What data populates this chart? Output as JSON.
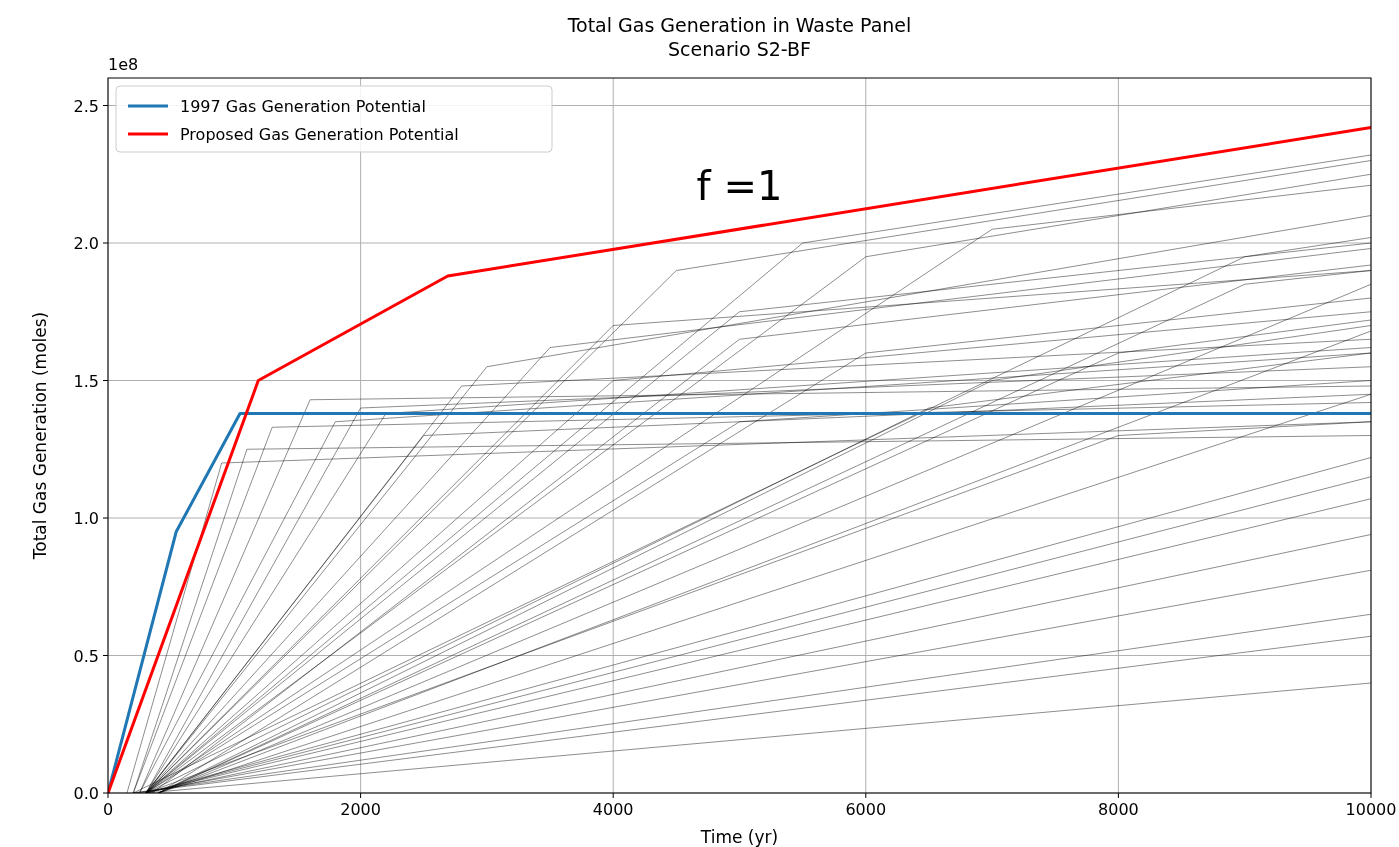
{
  "chart_data": {
    "type": "line",
    "title": "Total Gas Generation in Waste Panel",
    "subtitle": "Scenario S2-BF",
    "xlabel": "Time (yr)",
    "ylabel": "Total Gas Generation (moles)",
    "annotations": [
      "1e8",
      "f =1"
    ],
    "xlim": [
      0,
      10000
    ],
    "xticks": [
      0,
      2000,
      4000,
      6000,
      8000,
      10000
    ],
    "ylim": [
      0,
      2.6
    ],
    "yticks": [
      {
        "value": 0,
        "label": "0.0"
      },
      {
        "value": 0.5,
        "label": "0.5"
      },
      {
        "value": 1,
        "label": "1.0"
      },
      {
        "value": 1.5,
        "label": "1.5"
      },
      {
        "value": 2,
        "label": "2.0"
      },
      {
        "value": 2.5,
        "label": "2.5"
      }
    ],
    "grid": true,
    "legend": "top left",
    "line_style": "solid",
    "series": [
      {
        "color": "#000000",
        "x": [
          300,
          10000
        ],
        "values": [
          0,
          0.4
        ]
      },
      {
        "color": "#000000",
        "x": [
          200,
          10000
        ],
        "values": [
          0,
          0.57
        ]
      },
      {
        "color": "#000000",
        "x": [
          200,
          10000
        ],
        "values": [
          0,
          0.65
        ]
      },
      {
        "color": "#000000",
        "x": [
          250,
          10000
        ],
        "values": [
          0,
          0.81
        ]
      },
      {
        "color": "#000000",
        "x": [
          300,
          10000
        ],
        "values": [
          0,
          0.94
        ]
      },
      {
        "color": "#000000",
        "x": [
          300,
          10000
        ],
        "values": [
          0,
          1.07
        ]
      },
      {
        "color": "#000000",
        "x": [
          300,
          10000
        ],
        "values": [
          0,
          1.22
        ]
      },
      {
        "color": "#000000",
        "x": [
          300,
          8000,
          10000
        ],
        "values": [
          0,
          1.3,
          1.35
        ]
      },
      {
        "color": "#000000",
        "x": [
          200,
          1100,
          10000
        ],
        "values": [
          0,
          1.25,
          1.3
        ]
      },
      {
        "color": "#000000",
        "x": [
          200,
          1300,
          10000
        ],
        "values": [
          0,
          1.33,
          1.42
        ]
      },
      {
        "color": "#000000",
        "x": [
          250,
          1600,
          10000
        ],
        "values": [
          0,
          1.43,
          1.48
        ]
      },
      {
        "color": "#000000",
        "x": [
          300,
          2000,
          10000
        ],
        "values": [
          0,
          1.4,
          1.55
        ]
      },
      {
        "color": "#000000",
        "x": [
          150,
          900,
          10000
        ],
        "values": [
          0,
          1.2,
          1.35
        ]
      },
      {
        "color": "#000000",
        "x": [
          300,
          2800,
          10000
        ],
        "values": [
          0,
          1.48,
          1.65
        ]
      },
      {
        "color": "#000000",
        "x": [
          300,
          4000,
          10000
        ],
        "values": [
          0,
          1.7,
          1.9
        ]
      },
      {
        "color": "#000000",
        "x": [
          300,
          3500,
          10000
        ],
        "values": [
          0,
          1.62,
          1.98
        ]
      },
      {
        "color": "#000000",
        "x": [
          300,
          5000,
          10000
        ],
        "values": [
          0,
          1.75,
          2.0
        ]
      },
      {
        "color": "#000000",
        "x": [
          300,
          4500,
          10000
        ],
        "values": [
          0,
          1.9,
          2.3
        ]
      },
      {
        "color": "#000000",
        "x": [
          300,
          5500,
          10000
        ],
        "values": [
          0,
          2.0,
          2.32
        ]
      },
      {
        "color": "#000000",
        "x": [
          300,
          6000,
          10000
        ],
        "values": [
          0,
          1.95,
          2.25
        ]
      },
      {
        "color": "#000000",
        "x": [
          300,
          7000,
          10000
        ],
        "values": [
          0,
          2.05,
          2.21
        ]
      },
      {
        "color": "#000000",
        "x": [
          400,
          6000,
          10000
        ],
        "values": [
          0,
          1.6,
          1.8
        ]
      },
      {
        "color": "#000000",
        "x": [
          400,
          7000,
          10000
        ],
        "values": [
          0,
          1.5,
          1.7
        ]
      },
      {
        "color": "#000000",
        "x": [
          400,
          8000,
          10000
        ],
        "values": [
          0,
          1.6,
          1.72
        ]
      },
      {
        "color": "#000000",
        "x": [
          400,
          9000,
          10000
        ],
        "values": [
          0,
          1.85,
          1.9
        ]
      },
      {
        "color": "#000000",
        "x": [
          300,
          5000,
          10000
        ],
        "values": [
          0,
          1.35,
          1.5
        ]
      },
      {
        "color": "#000000",
        "x": [
          300,
          6500,
          10000
        ],
        "values": [
          0,
          1.4,
          1.6
        ]
      },
      {
        "color": "#000000",
        "x": [
          300,
          2500,
          10000
        ],
        "values": [
          0,
          1.3,
          1.45
        ]
      },
      {
        "color": "#000000",
        "x": [
          300,
          4000,
          10000
        ],
        "values": [
          0,
          1.5,
          1.75
        ]
      },
      {
        "color": "#000000",
        "x": [
          250,
          1800,
          10000
        ],
        "values": [
          0,
          1.35,
          1.6
        ]
      },
      {
        "color": "#000000",
        "x": [
          400,
          10000
        ],
        "values": [
          0,
          1.68
        ]
      },
      {
        "color": "#000000",
        "x": [
          400,
          10000
        ],
        "values": [
          0,
          1.85
        ]
      },
      {
        "color": "#000000",
        "x": [
          400,
          10000
        ],
        "values": [
          0,
          1.45
        ]
      },
      {
        "color": "#000000",
        "x": [
          300,
          10000
        ],
        "values": [
          0,
          1.15
        ]
      },
      {
        "color": "#000000",
        "x": [
          300,
          3000,
          10000
        ],
        "values": [
          0,
          1.55,
          2.1
        ]
      },
      {
        "color": "#000000",
        "x": [
          300,
          2200,
          10000
        ],
        "values": [
          0,
          1.38,
          1.62
        ]
      },
      {
        "color": "#000000",
        "x": [
          200,
          9000,
          10000
        ],
        "values": [
          0,
          1.95,
          2.02
        ]
      },
      {
        "color": "#000000",
        "x": [
          350,
          5000,
          10000
        ],
        "values": [
          0,
          1.65,
          1.92
        ]
      },
      {
        "name": "1997 Gas Generation Potential",
        "color": "#1f77b4",
        "x": [
          0,
          540,
          1045,
          10000
        ],
        "values": [
          0,
          0.95,
          1.38,
          1.38
        ]
      },
      {
        "name": "Proposed Gas Generation Potential",
        "color": "#ff0000",
        "x": [
          0,
          1190,
          2690,
          10000
        ],
        "values": [
          0,
          1.5,
          1.88,
          2.42
        ]
      }
    ]
  }
}
